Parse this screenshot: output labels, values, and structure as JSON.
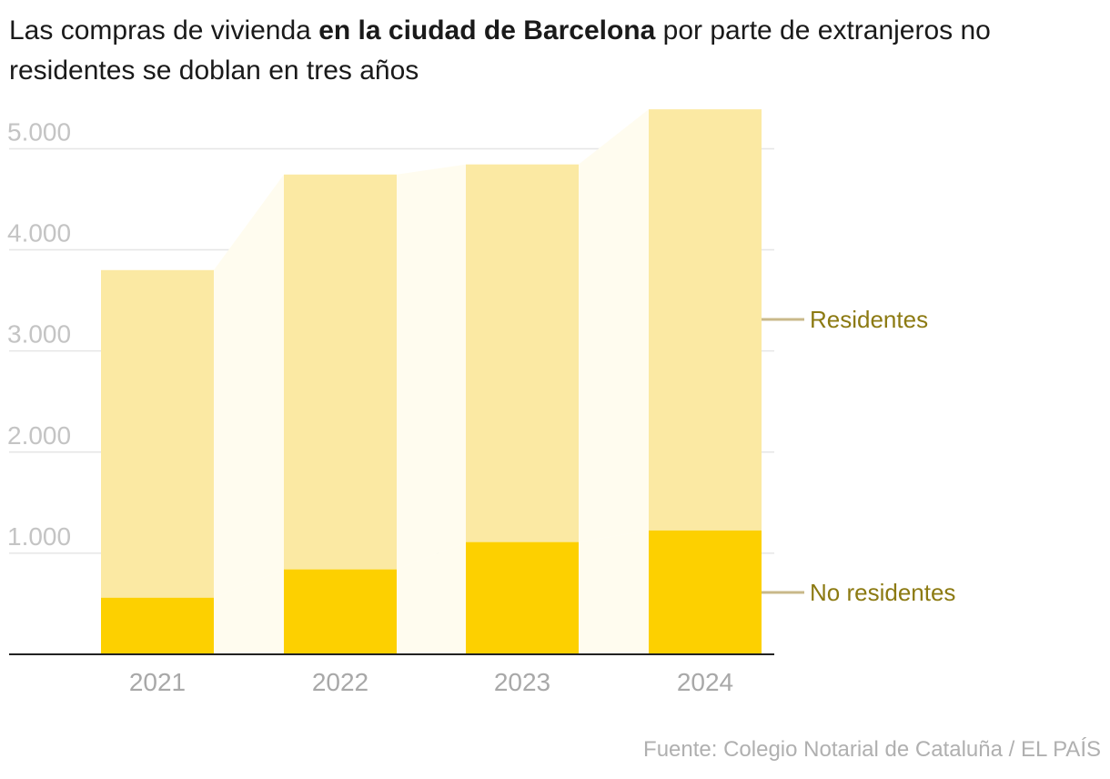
{
  "title": {
    "part1": "Las compras de vivienda ",
    "bold": "en la ciudad de Barcelona",
    "part2": " por parte de extranjeros no residentes se doblan en tres años"
  },
  "source": "Fuente: Colegio Notarial de Cataluña / EL PAÍS",
  "colors": {
    "residentes": "#fbe9a3",
    "no_residentes": "#fdd000",
    "connector": "#fffcef",
    "legend_text": "#8c7a12",
    "legend_line": "#c9b98a",
    "grid": "#e6e6e6",
    "axis": "#222222"
  },
  "chart_data": {
    "type": "bar",
    "stacked": true,
    "categories": [
      "2021",
      "2022",
      "2023",
      "2024"
    ],
    "series": [
      {
        "name": "No residentes",
        "values": [
          560,
          840,
          1110,
          1225
        ]
      },
      {
        "name": "Residentes",
        "values": [
          3240,
          3905,
          3735,
          4165
        ]
      }
    ],
    "totals": [
      3800,
      4745,
      4845,
      5390
    ],
    "ylim": [
      0,
      5400
    ],
    "yticks": [
      1000,
      2000,
      3000,
      4000,
      5000
    ],
    "ytick_labels": [
      "1.000",
      "2.000",
      "3.000",
      "4.000",
      "5.000"
    ],
    "grid": true,
    "legend": [
      "Residentes",
      "No residentes"
    ],
    "legend_position": "right"
  }
}
